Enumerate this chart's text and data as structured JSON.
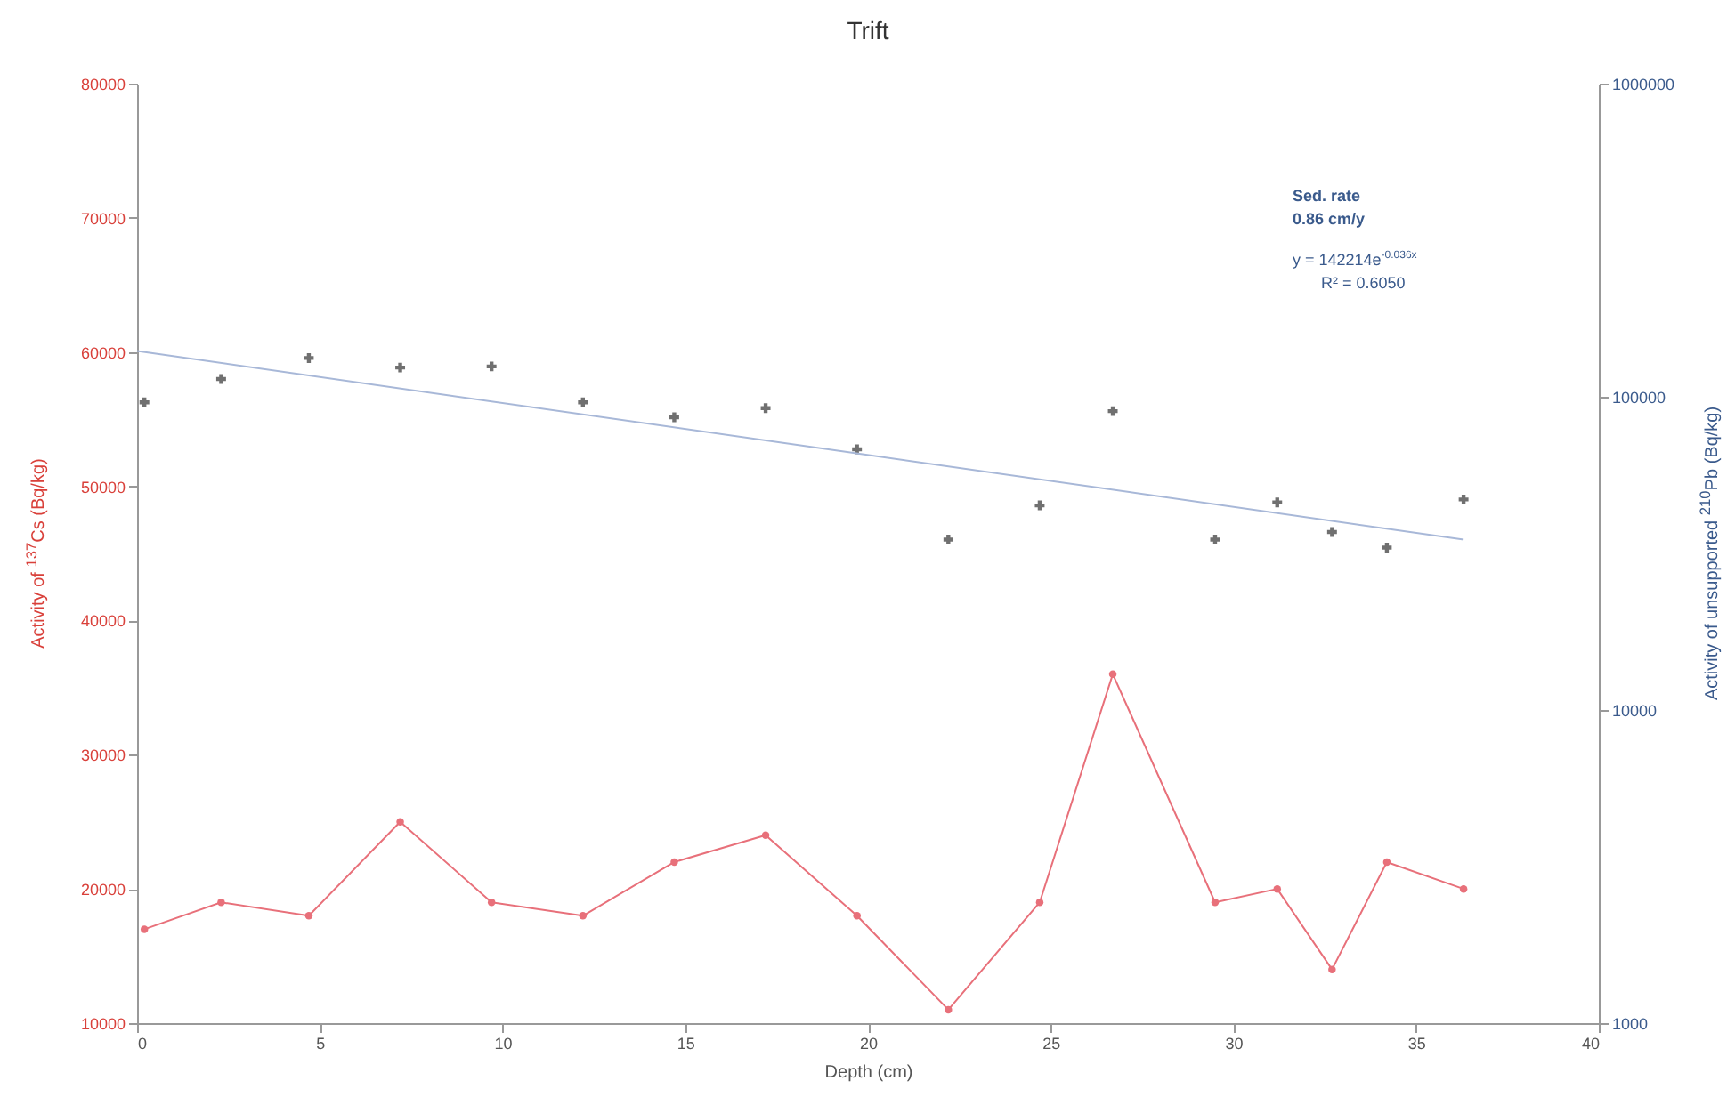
{
  "chart_data": {
    "type": "line",
    "title": "Trift",
    "xlabel": "Depth (cm)",
    "ylabel": "Activity of $^{137}$Cs (Bq/kg)",
    "y2label": "Activity of unsupported $^{210}$Pb (Bq/kg)",
    "xlim": [
      0,
      40
    ],
    "xticks": [
      0,
      5,
      10,
      15,
      20,
      25,
      30,
      35,
      40
    ],
    "ylim": [
      10000,
      80000
    ],
    "yticks": [
      10000,
      20000,
      30000,
      40000,
      50000,
      60000,
      70000,
      80000
    ],
    "y2lim": [
      1000,
      1000000
    ],
    "y2ticks": [
      1000,
      10000,
      100000,
      1000000
    ],
    "log": "y2",
    "x": [
      0.2,
      2.3,
      4.7,
      7.2,
      9.7,
      12.2,
      14.7,
      17.2,
      19.7,
      22.2,
      24.7,
      26.7,
      29.5,
      31.2,
      32.7,
      34.2,
      36.3
    ],
    "series": [
      {
        "type": "line",
        "color": "#e8707a",
        "marker": "circle",
        "values": [
          17000,
          19000,
          18000,
          25000,
          19000,
          18000,
          22000,
          24000,
          18000,
          11000,
          19000,
          36000,
          19000,
          20000,
          14000,
          22000,
          20000
        ]
      },
      {
        "type": "scatter",
        "axis": "y2",
        "color": "#333333",
        "marker": "cross",
        "values": [
          96000,
          114000,
          133000,
          124000,
          125000,
          96000,
          86000,
          92000,
          68000,
          35000,
          45000,
          90000,
          35000,
          46000,
          37000,
          33000,
          47000
        ]
      },
      {
        "type": "line",
        "axis": "y2",
        "color": "#a8b8d8",
        "marker": "none",
        "x": [
          0,
          36.3
        ],
        "values": [
          140000,
          35000
        ]
      }
    ],
    "annotations": [
      "Sed. rate",
      "0.86 cm/y",
      "y = 142214e$^{-0.036x}$",
      "R² = 0.6050"
    ]
  }
}
